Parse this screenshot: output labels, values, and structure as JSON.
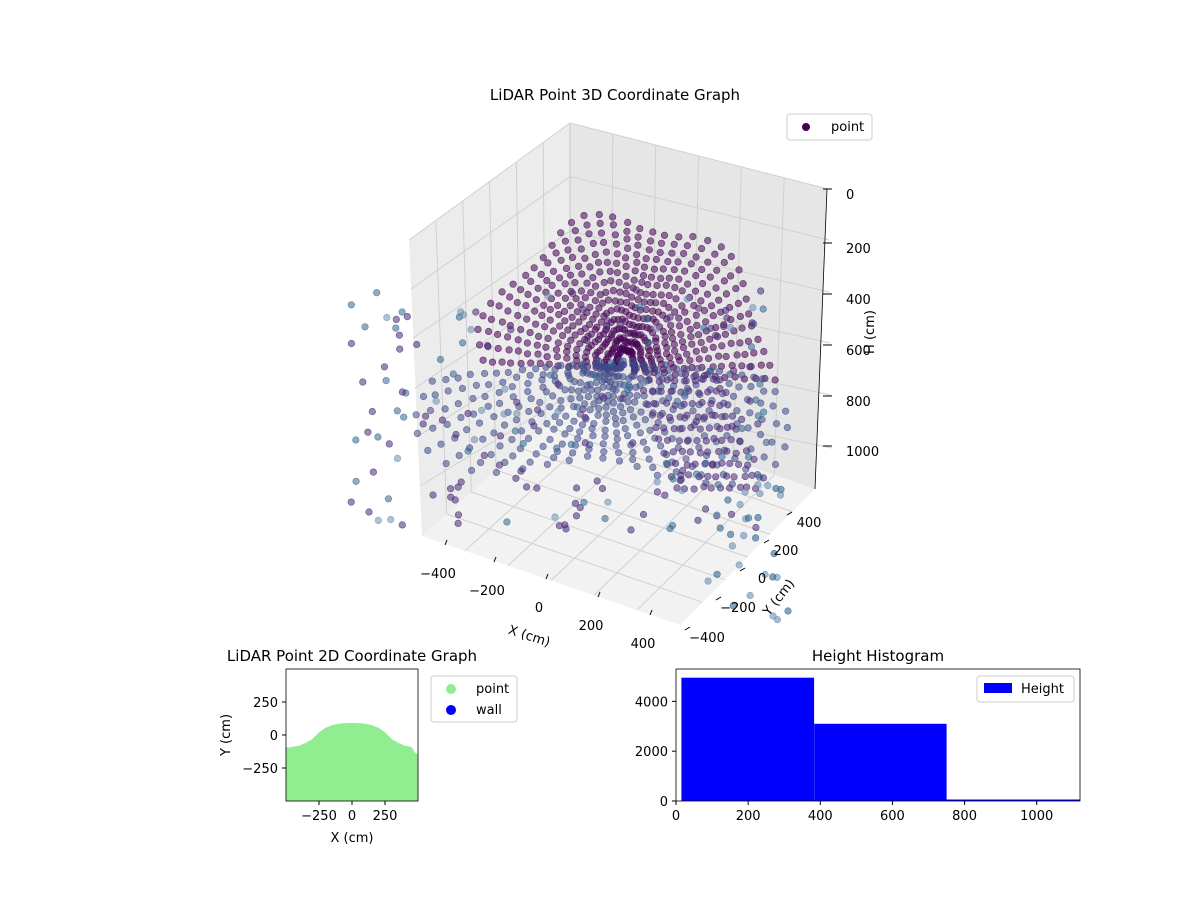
{
  "chart_data": [
    {
      "type": "scatter3d",
      "title": "LiDAR Point 3D Coordinate Graph",
      "xlabel": "X (cm)",
      "ylabel": "Y (cm)",
      "zlabel": "H (cm)",
      "x_ticks": [
        -400,
        -200,
        0,
        200,
        400
      ],
      "y_ticks": [
        -400,
        -200,
        0,
        200,
        400
      ],
      "z_ticks": [
        0,
        200,
        400,
        600,
        800,
        1000
      ],
      "x_tick_labels": [
        "−400",
        "−200",
        "0",
        "200",
        "400"
      ],
      "y_tick_labels": [
        "−400",
        "−200",
        "0",
        "200",
        "400"
      ],
      "z_tick_labels": [
        "0",
        "200",
        "400",
        "600",
        "800",
        "1000"
      ],
      "z_axis_inverted": true,
      "legend": [
        {
          "label": "point",
          "color": "#440154"
        }
      ],
      "legend_position": "top-right",
      "colormap": [
        "#440154",
        "#482878",
        "#3e4a89",
        "#31688e",
        "#6b8fb3",
        "#8fb0cc"
      ],
      "grid": true
    },
    {
      "type": "area",
      "title": "LiDAR Point 2D Coordinate Graph",
      "xlabel": "X (cm)",
      "ylabel": "Y (cm)",
      "xlim": [
        -500,
        500
      ],
      "ylim": [
        -500,
        500
      ],
      "x_ticks": [
        -250,
        0,
        250
      ],
      "y_ticks": [
        -250,
        0,
        250
      ],
      "x_tick_labels": [
        "−250",
        "0",
        "250"
      ],
      "y_tick_labels": [
        "−250",
        "0",
        "250"
      ],
      "series": [
        {
          "name": "point",
          "color": "#90ee90"
        },
        {
          "name": "wall",
          "color": "#0000ff"
        }
      ],
      "boundary_x": [
        -500,
        -475,
        -450,
        -400,
        -350,
        -300,
        -250,
        -200,
        -150,
        -100,
        -50,
        0,
        50,
        100,
        150,
        200,
        250,
        300,
        350,
        400,
        450,
        475,
        500
      ],
      "boundary_y": [
        -90,
        -95,
        -90,
        -80,
        -60,
        -30,
        20,
        55,
        75,
        85,
        90,
        92,
        90,
        85,
        75,
        55,
        20,
        -30,
        -60,
        -80,
        -90,
        -130,
        -150
      ],
      "legend_position": "outside-right"
    },
    {
      "type": "bar",
      "title": "Height Histogram",
      "xlabel": "",
      "ylabel": "",
      "xlim": [
        0,
        1120
      ],
      "ylim": [
        0,
        5300
      ],
      "x_ticks": [
        0,
        200,
        400,
        600,
        800,
        1000
      ],
      "y_ticks": [
        0,
        2000,
        4000
      ],
      "bins": [
        {
          "x0": 15,
          "x1": 383,
          "count": 4950
        },
        {
          "x0": 383,
          "x1": 750,
          "count": 3100
        },
        {
          "x0": 750,
          "x1": 1120,
          "count": 60
        }
      ],
      "series": [
        {
          "name": "Height",
          "color": "#0000ff"
        }
      ],
      "legend_position": "top-right"
    }
  ]
}
